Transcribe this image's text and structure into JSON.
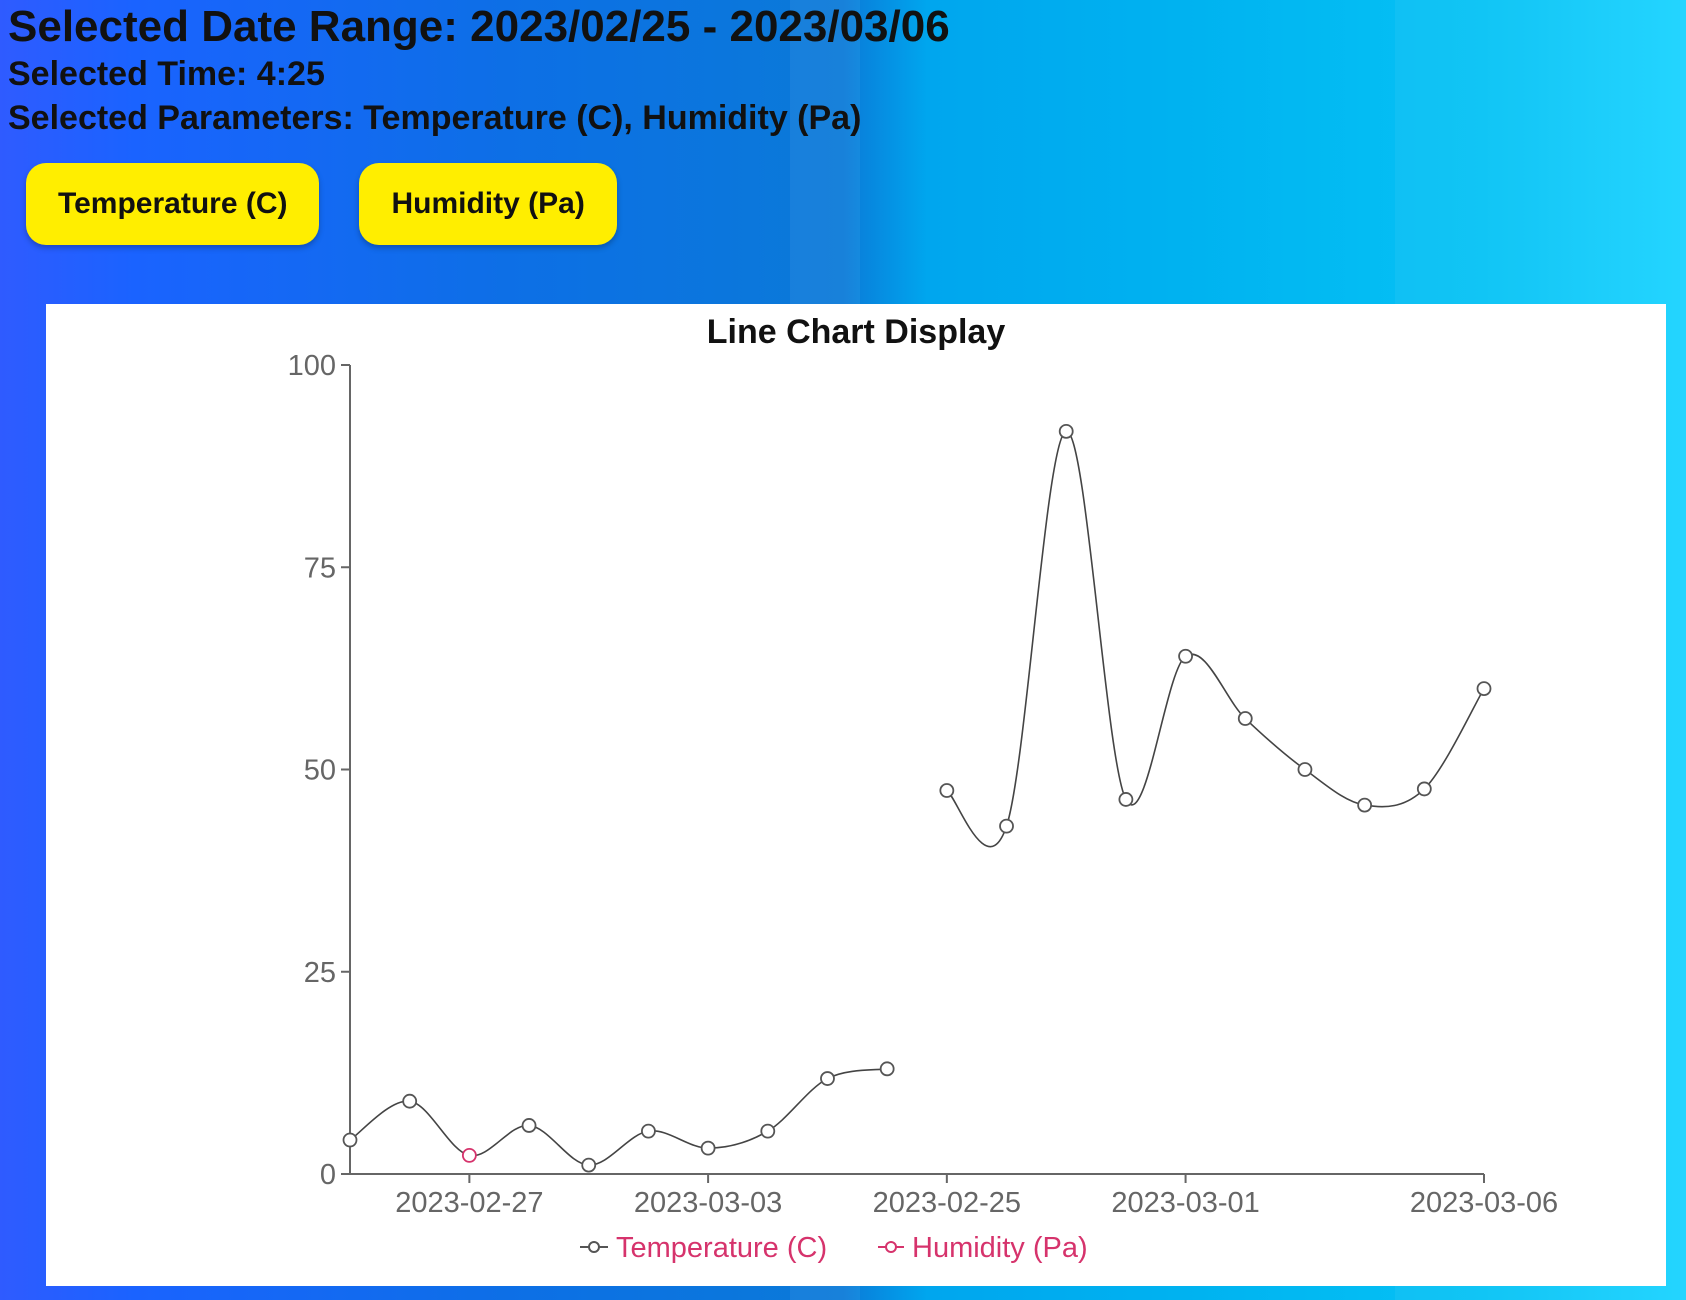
{
  "header": {
    "range_label": "Selected Date Range: 2023/02/25 - 2023/03/06",
    "time_label": "Selected Time: 4:25",
    "params_label": "Selected Parameters: Temperature (C), Humidity (Pa)"
  },
  "buttons": {
    "temperature": "Temperature (C)",
    "humidity": "Humidity (Pa)"
  },
  "colors": {
    "button_bg": "#ffee00",
    "temperature": "#666666",
    "humidity": "#d6336c"
  },
  "chart_data": {
    "type": "line",
    "title": "Line Chart Display",
    "xlabel": "",
    "ylabel": "",
    "ylim": [
      0,
      100
    ],
    "y_ticks": [
      0,
      25,
      50,
      75,
      100
    ],
    "x_tick_labels": [
      "2023-02-27",
      "2023-03-03",
      "2023-02-25",
      "2023-03-01",
      "2023-03-06"
    ],
    "series": [
      {
        "name": "Temperature (C)",
        "color": "#666666",
        "segments": [
          [
            4.2,
            9.0,
            2.3,
            6.0,
            1.1,
            5.3,
            3.2,
            5.3,
            11.8,
            13.0
          ],
          [
            47.4,
            43.0,
            91.8,
            46.3,
            64.0,
            56.3,
            50.0,
            45.6,
            47.6,
            60.0
          ]
        ]
      },
      {
        "name": "Humidity (Pa)",
        "color": "#d6336c",
        "highlight": [
          {
            "segment": 0,
            "index": 2,
            "value": 2.3
          }
        ]
      }
    ],
    "legend": "bottom-center"
  }
}
